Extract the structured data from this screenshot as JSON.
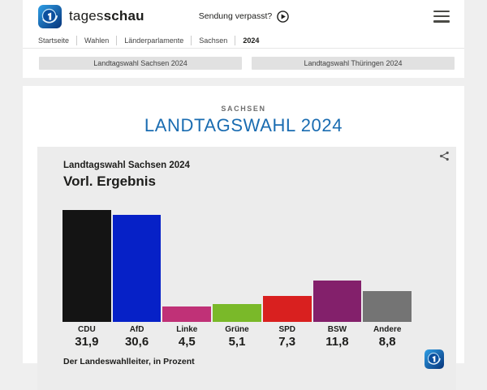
{
  "header": {
    "brand": {
      "name_light": "tages",
      "name_bold": "schau"
    },
    "sendung_verpasst": "Sendung verpasst?",
    "breadcrumb": [
      "Startseite",
      "Wahlen",
      "Länderparlamente",
      "Sachsen",
      "2024"
    ]
  },
  "nav_buttons": [
    {
      "label": "Landtagswahl Sachsen 2024"
    },
    {
      "label": "Landtagswahl Thüringen 2024"
    }
  ],
  "page": {
    "kicker": "SACHSEN",
    "title": "LANDTAGSWAHL 2024"
  },
  "chart_card": {
    "title": "Landtagswahl Sachsen 2024",
    "subtitle": "Vorl. Ergebnis",
    "source": "Der Landeswahlleiter, in Prozent"
  },
  "chart_data": {
    "type": "bar",
    "title": "Landtagswahl Sachsen 2024 – Vorl. Ergebnis",
    "categories": [
      "CDU",
      "AfD",
      "Linke",
      "Grüne",
      "SPD",
      "BSW",
      "Andere"
    ],
    "values": [
      31.9,
      30.6,
      4.5,
      5.1,
      7.3,
      11.8,
      8.8
    ],
    "value_labels": [
      "31,9",
      "30,6",
      "4,5",
      "5,1",
      "7,3",
      "11,8",
      "8,8"
    ],
    "colors": [
      "#141414",
      "#0621c7",
      "#c03177",
      "#7ab929",
      "#d9201f",
      "#83206b",
      "#747474"
    ],
    "unit": "Prozent",
    "ylim": [
      0,
      32
    ],
    "source": "Der Landeswahlleiter, in Prozent",
    "grid": false,
    "legend": false
  },
  "icons": {
    "brand_logo": "tagesschau-globe-icon",
    "play": "play-circle-icon",
    "menu": "hamburger-menu-icon",
    "share": "share-icon",
    "watermark": "tagesschau-globe-icon"
  },
  "colors": {
    "accent_blue": "#1a6cb1",
    "page_background": "#efefef",
    "card_background": "#ececec",
    "band_background": "#ffffff",
    "button_background": "#e1e1e1"
  }
}
